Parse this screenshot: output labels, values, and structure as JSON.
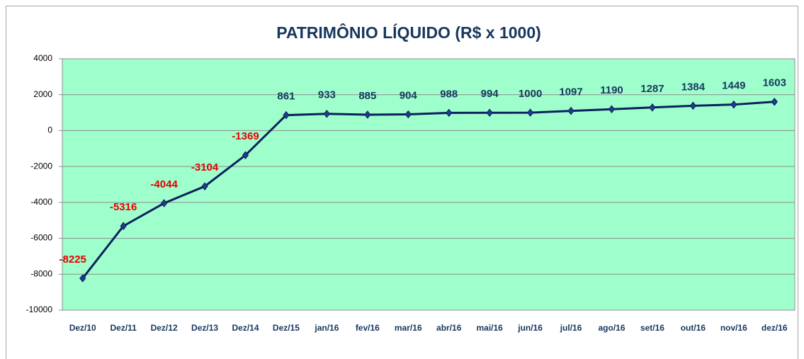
{
  "chart_data": {
    "type": "line",
    "title": "PATRIMÔNIO LÍQUIDO (R$ x 1000)",
    "categories": [
      "Dez/10",
      "Dez/11",
      "Dez/12",
      "Dez/13",
      "Dez/14",
      "Dez/15",
      "jan/16",
      "fev/16",
      "mar/16",
      "abr/16",
      "mai/16",
      "jun/16",
      "jul/16",
      "ago/16",
      "set/16",
      "out/16",
      "nov/16",
      "dez/16"
    ],
    "series": [
      {
        "name": "Patrimônio Líquido",
        "color": "#0d1f5c",
        "negative_color": "#e60000",
        "label_color": "#17375e",
        "values": [
          -8225,
          -5316,
          -4044,
          -3104,
          -1369,
          861,
          933,
          885,
          904,
          988,
          994,
          1000,
          1097,
          1190,
          1287,
          1384,
          1449,
          1603
        ]
      }
    ],
    "ylim": [
      -10000,
      4000
    ],
    "yticks": [
      -10000,
      -8000,
      -6000,
      -4000,
      -2000,
      0,
      2000,
      4000
    ],
    "grid": true,
    "plot_background": "#9effcc",
    "legend": false
  }
}
